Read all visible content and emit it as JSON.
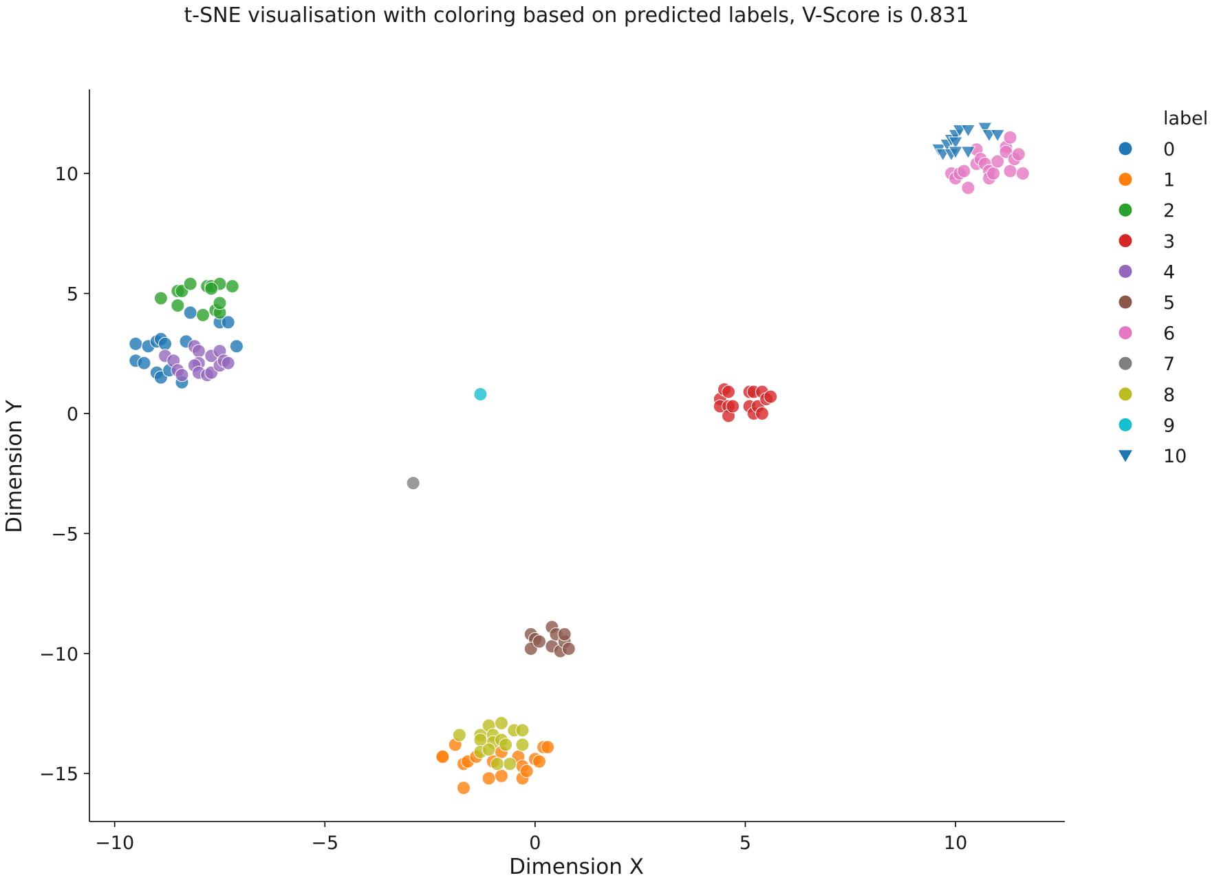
{
  "chart_data": {
    "type": "scatter",
    "title": "t-SNE visualisation with coloring based on predicted labels, V-Score is 0.831",
    "xlabel": "Dimension X",
    "ylabel": "Dimension Y",
    "xlim": [
      -10.6,
      12.6
    ],
    "ylim": [
      -17.0,
      13.5
    ],
    "xticks": [
      -10,
      -5,
      0,
      5,
      10
    ],
    "yticks": [
      10,
      5,
      0,
      -5,
      -10,
      -15
    ],
    "xtick_labels": [
      "−10",
      "−5",
      "0",
      "5",
      "10"
    ],
    "ytick_labels": [
      "10",
      "5",
      "0",
      "−5",
      "−10",
      "−15"
    ],
    "grid": false,
    "legend": {
      "title": "label",
      "placement": "right"
    },
    "series": [
      {
        "name": "0",
        "color": "#1f77b4",
        "marker": "circle",
        "points": [
          [
            -9.5,
            2.9
          ],
          [
            -9.5,
            2.2
          ],
          [
            -9.3,
            2.1
          ],
          [
            -9.2,
            2.8
          ],
          [
            -9.0,
            3.0
          ],
          [
            -8.9,
            3.1
          ],
          [
            -8.8,
            2.9
          ],
          [
            -9.0,
            1.7
          ],
          [
            -8.9,
            1.5
          ],
          [
            -8.7,
            1.8
          ],
          [
            -8.4,
            1.3
          ],
          [
            -8.3,
            3.0
          ],
          [
            -8.2,
            4.2
          ],
          [
            -7.5,
            3.8
          ],
          [
            -7.3,
            3.8
          ],
          [
            -7.1,
            2.8
          ]
        ]
      },
      {
        "name": "1",
        "color": "#ff7f0e",
        "marker": "circle",
        "points": [
          [
            -2.2,
            -14.3
          ],
          [
            -2.2,
            -14.3
          ],
          [
            -1.9,
            -13.8
          ],
          [
            -1.7,
            -14.6
          ],
          [
            -1.6,
            -14.5
          ],
          [
            -1.4,
            -14.3
          ],
          [
            -1.7,
            -15.6
          ],
          [
            -1.1,
            -15.2
          ],
          [
            -0.8,
            -15.1
          ],
          [
            -1.0,
            -14.5
          ],
          [
            -0.8,
            -14.1
          ],
          [
            -0.4,
            -14.3
          ],
          [
            -0.3,
            -14.7
          ],
          [
            -0.3,
            -15.2
          ],
          [
            -0.2,
            -14.9
          ],
          [
            0.0,
            -14.4
          ],
          [
            0.1,
            -14.5
          ],
          [
            0.2,
            -13.9
          ],
          [
            0.3,
            -13.9
          ]
        ]
      },
      {
        "name": "2",
        "color": "#2ca02c",
        "marker": "circle",
        "points": [
          [
            -8.9,
            4.8
          ],
          [
            -8.5,
            4.5
          ],
          [
            -8.5,
            5.1
          ],
          [
            -8.4,
            5.1
          ],
          [
            -8.2,
            5.4
          ],
          [
            -7.9,
            4.1
          ],
          [
            -7.8,
            5.3
          ],
          [
            -7.7,
            5.3
          ],
          [
            -7.6,
            4.3
          ],
          [
            -7.5,
            4.2
          ],
          [
            -7.5,
            4.6
          ],
          [
            -7.5,
            5.4
          ],
          [
            -7.2,
            5.3
          ],
          [
            -7.7,
            5.2
          ]
        ]
      },
      {
        "name": "3",
        "color": "#d62728",
        "marker": "circle",
        "points": [
          [
            4.4,
            0.6
          ],
          [
            4.4,
            0.3
          ],
          [
            4.5,
            1.0
          ],
          [
            4.6,
            0.3
          ],
          [
            4.6,
            -0.1
          ],
          [
            4.6,
            0.9
          ],
          [
            4.7,
            0.3
          ],
          [
            5.1,
            0.9
          ],
          [
            5.1,
            0.3
          ],
          [
            5.2,
            0.0
          ],
          [
            5.2,
            0.9
          ],
          [
            5.3,
            0.3
          ],
          [
            5.4,
            0.9
          ],
          [
            5.4,
            0.0
          ],
          [
            5.5,
            0.6
          ],
          [
            5.6,
            0.7
          ]
        ]
      },
      {
        "name": "4",
        "color": "#9467bd",
        "marker": "circle",
        "points": [
          [
            -8.8,
            2.4
          ],
          [
            -8.6,
            2.2
          ],
          [
            -8.5,
            1.8
          ],
          [
            -8.4,
            1.6
          ],
          [
            -8.1,
            2.8
          ],
          [
            -8.0,
            2.6
          ],
          [
            -8.0,
            2.1
          ],
          [
            -8.1,
            2.0
          ],
          [
            -8.0,
            1.7
          ],
          [
            -7.8,
            1.6
          ],
          [
            -7.7,
            1.7
          ],
          [
            -7.7,
            2.4
          ],
          [
            -7.5,
            2.6
          ],
          [
            -7.5,
            2.0
          ],
          [
            -7.4,
            2.2
          ],
          [
            -7.3,
            2.1
          ]
        ]
      },
      {
        "name": "5",
        "color": "#8c564b",
        "marker": "circle",
        "points": [
          [
            -0.1,
            -9.2
          ],
          [
            0.0,
            -9.4
          ],
          [
            -0.1,
            -9.8
          ],
          [
            0.1,
            -9.5
          ],
          [
            0.4,
            -8.9
          ],
          [
            0.4,
            -9.7
          ],
          [
            0.5,
            -9.2
          ],
          [
            0.6,
            -9.9
          ],
          [
            0.7,
            -9.5
          ],
          [
            0.7,
            -9.2
          ],
          [
            0.8,
            -9.8
          ]
        ]
      },
      {
        "name": "6",
        "color": "#e377c2",
        "marker": "circle",
        "points": [
          [
            9.9,
            10.0
          ],
          [
            10.0,
            9.8
          ],
          [
            10.1,
            10.0
          ],
          [
            10.2,
            10.1
          ],
          [
            10.3,
            9.4
          ],
          [
            10.5,
            11.0
          ],
          [
            10.5,
            10.4
          ],
          [
            10.6,
            10.6
          ],
          [
            10.7,
            10.4
          ],
          [
            10.8,
            10.1
          ],
          [
            10.8,
            9.8
          ],
          [
            10.9,
            10.0
          ],
          [
            11.0,
            10.5
          ],
          [
            11.2,
            11.1
          ],
          [
            11.2,
            10.9
          ],
          [
            11.3,
            11.5
          ],
          [
            11.3,
            10.1
          ],
          [
            11.4,
            10.6
          ],
          [
            11.5,
            10.8
          ],
          [
            11.6,
            10.0
          ]
        ]
      },
      {
        "name": "7",
        "color": "#7f7f7f",
        "marker": "circle",
        "points": [
          [
            -2.9,
            -2.9
          ]
        ]
      },
      {
        "name": "8",
        "color": "#bcbd22",
        "marker": "circle",
        "points": [
          [
            -1.8,
            -13.4
          ],
          [
            -1.3,
            -13.4
          ],
          [
            -1.3,
            -13.6
          ],
          [
            -1.1,
            -13.0
          ],
          [
            -1.0,
            -13.4
          ],
          [
            -1.0,
            -13.7
          ],
          [
            -1.3,
            -14.1
          ],
          [
            -1.1,
            -14.0
          ],
          [
            -0.9,
            -14.6
          ],
          [
            -0.8,
            -13.6
          ],
          [
            -0.8,
            -12.9
          ],
          [
            -0.7,
            -13.8
          ],
          [
            -0.6,
            -14.6
          ],
          [
            -0.5,
            -13.2
          ],
          [
            -0.3,
            -13.8
          ],
          [
            -0.3,
            -13.2
          ]
        ]
      },
      {
        "name": "9",
        "color": "#17becf",
        "marker": "circle",
        "points": [
          [
            -1.3,
            0.8
          ]
        ]
      },
      {
        "name": "10",
        "color": "#1f77b4",
        "marker": "triangle-down",
        "points": [
          [
            9.6,
            11.0
          ],
          [
            9.7,
            10.8
          ],
          [
            9.8,
            11.2
          ],
          [
            9.9,
            11.4
          ],
          [
            9.9,
            10.8
          ],
          [
            10.0,
            11.6
          ],
          [
            10.0,
            11.3
          ],
          [
            10.0,
            10.9
          ],
          [
            10.1,
            11.8
          ],
          [
            10.3,
            11.8
          ],
          [
            10.7,
            11.9
          ],
          [
            10.8,
            11.6
          ],
          [
            11.0,
            11.6
          ],
          [
            10.3,
            10.9
          ]
        ]
      }
    ]
  }
}
